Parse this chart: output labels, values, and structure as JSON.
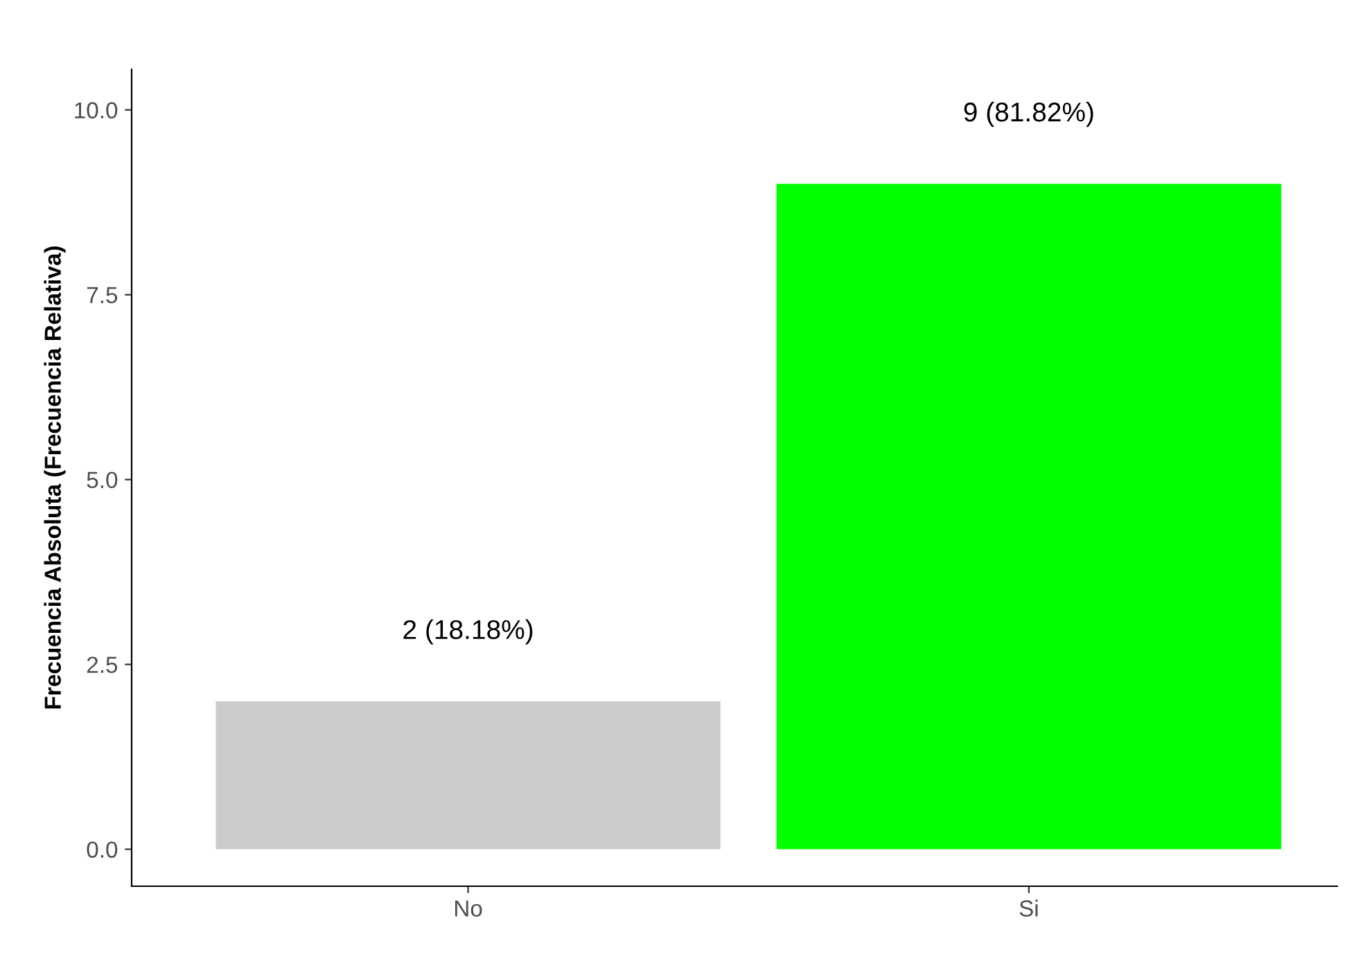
{
  "chart_data": {
    "type": "bar",
    "ylabel": "Frecuencia Absoluta (Frecuencia Relativa)",
    "categories": [
      "No",
      "Si"
    ],
    "values": [
      2,
      9
    ],
    "colors": [
      "#cccccc",
      "#00ff00"
    ],
    "value_labels": [
      "2 (18.18%)",
      "9 (81.82%)"
    ],
    "ylim": [
      -0.5,
      10.55
    ],
    "yticks": [
      {
        "value": 0,
        "label": "0.0"
      },
      {
        "value": 2.5,
        "label": "2.5"
      },
      {
        "value": 5,
        "label": "5.0"
      },
      {
        "value": 7.5,
        "label": "7.5"
      },
      {
        "value": 10,
        "label": "10.0"
      }
    ],
    "grid": false,
    "legend": false
  }
}
